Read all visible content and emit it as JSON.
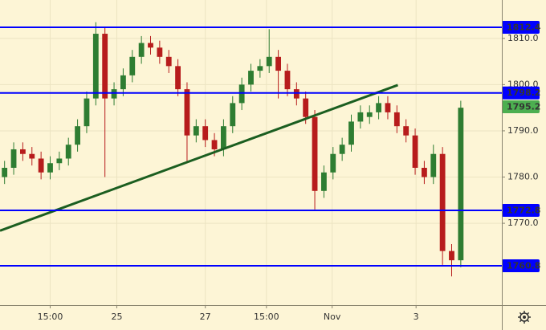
{
  "chart_data": {
    "type": "candlestick",
    "open": [
      1780,
      1782,
      1786,
      1785,
      1784,
      1781,
      1783,
      1784,
      1787,
      1791,
      1797,
      1811,
      1797,
      1799,
      1802,
      1806,
      1809,
      1808,
      1806,
      1804,
      1799,
      1789,
      1791,
      1788,
      1786,
      1791,
      1796,
      1800,
      1803,
      1804,
      1806,
      1803,
      1799,
      1797,
      1793,
      1777,
      1781,
      1785,
      1787,
      1792,
      1793,
      1794,
      1796,
      1794,
      1791,
      1789,
      1782,
      1780,
      1785,
      1764,
      1762
    ],
    "high": [
      1783.5,
      1787.5,
      1787.5,
      1786.5,
      1785.5,
      1784.5,
      1785.5,
      1788.5,
      1792.5,
      1798.5,
      1813.5,
      1812.5,
      1800.5,
      1803.5,
      1807.5,
      1810.5,
      1810.5,
      1809.5,
      1807.5,
      1805.5,
      1800.5,
      1792.5,
      1792.5,
      1789.5,
      1792.5,
      1797.5,
      1801.5,
      1804.5,
      1805.5,
      1812,
      1807.5,
      1804.5,
      1800.5,
      1798.5,
      1794.5,
      1782.5,
      1786.5,
      1788.5,
      1793.5,
      1795.5,
      1795.5,
      1797.5,
      1797.5,
      1795.5,
      1792.5,
      1790.5,
      1783.5,
      1787,
      1786.5,
      1765.5,
      1796.5
    ],
    "low": [
      1778.5,
      1780.5,
      1783.5,
      1782.5,
      1779.5,
      1779.5,
      1781.5,
      1782.5,
      1785.5,
      1789.5,
      1795.5,
      1780,
      1795.5,
      1797.5,
      1800.5,
      1804.5,
      1806.5,
      1804.5,
      1802.5,
      1797.5,
      1783,
      1787.5,
      1786.5,
      1784.5,
      1784.5,
      1789.5,
      1794.5,
      1798.5,
      1801.5,
      1802.5,
      1797,
      1797.5,
      1795.5,
      1791.5,
      1773,
      1775.5,
      1779.5,
      1783.5,
      1785.5,
      1790.5,
      1791.5,
      1792.5,
      1792.5,
      1789.5,
      1787.5,
      1780.5,
      1778.5,
      1778.5,
      1761,
      1758.5,
      1760.5
    ],
    "close": [
      1782,
      1786,
      1785,
      1784,
      1781,
      1783,
      1784,
      1787,
      1791,
      1797,
      1811,
      1797,
      1799,
      1802,
      1806,
      1809,
      1808,
      1806,
      1804,
      1799,
      1789,
      1791,
      1788,
      1786,
      1791,
      1796,
      1800,
      1803,
      1804,
      1806,
      1803,
      1799,
      1797,
      1793,
      1777,
      1781,
      1785,
      1787,
      1792,
      1794,
      1794,
      1796,
      1794,
      1791,
      1789,
      1782,
      1780,
      1785,
      1764,
      1762,
      1795
    ],
    "up_color": "#2e7d32",
    "down_color": "#b71c1c",
    "xlim": [
      -0.5,
      54.5
    ],
    "xticks": [
      {
        "value": 5,
        "label": "15:00"
      },
      {
        "value": 12.3,
        "label": "25"
      },
      {
        "value": 22,
        "label": "27"
      },
      {
        "value": 28.7,
        "label": "15:00"
      },
      {
        "value": 35.9,
        "label": "Nov"
      },
      {
        "value": 45.1,
        "label": "3"
      }
    ],
    "ylim": [
      1752.3,
      1818.3
    ],
    "yticks": [
      {
        "value": 1770,
        "label": "1770.0"
      },
      {
        "value": 1780,
        "label": "1780.0"
      },
      {
        "value": 1790,
        "label": "1790.0"
      },
      {
        "value": 1800,
        "label": "1800.0"
      },
      {
        "value": 1810,
        "label": "1810.0"
      }
    ],
    "grid": true,
    "levels": {
      "values": [
        1812.4,
        1798.2,
        1772.8,
        1760.8
      ],
      "color": "#0000ff"
    },
    "last_price": {
      "value": 1795.2,
      "color": "#4caf50"
    },
    "trendline": {
      "x": [
        -0.5,
        43.1
      ],
      "y": [
        1768.4,
        1799.9
      ],
      "color": "#1b5e20"
    }
  }
}
